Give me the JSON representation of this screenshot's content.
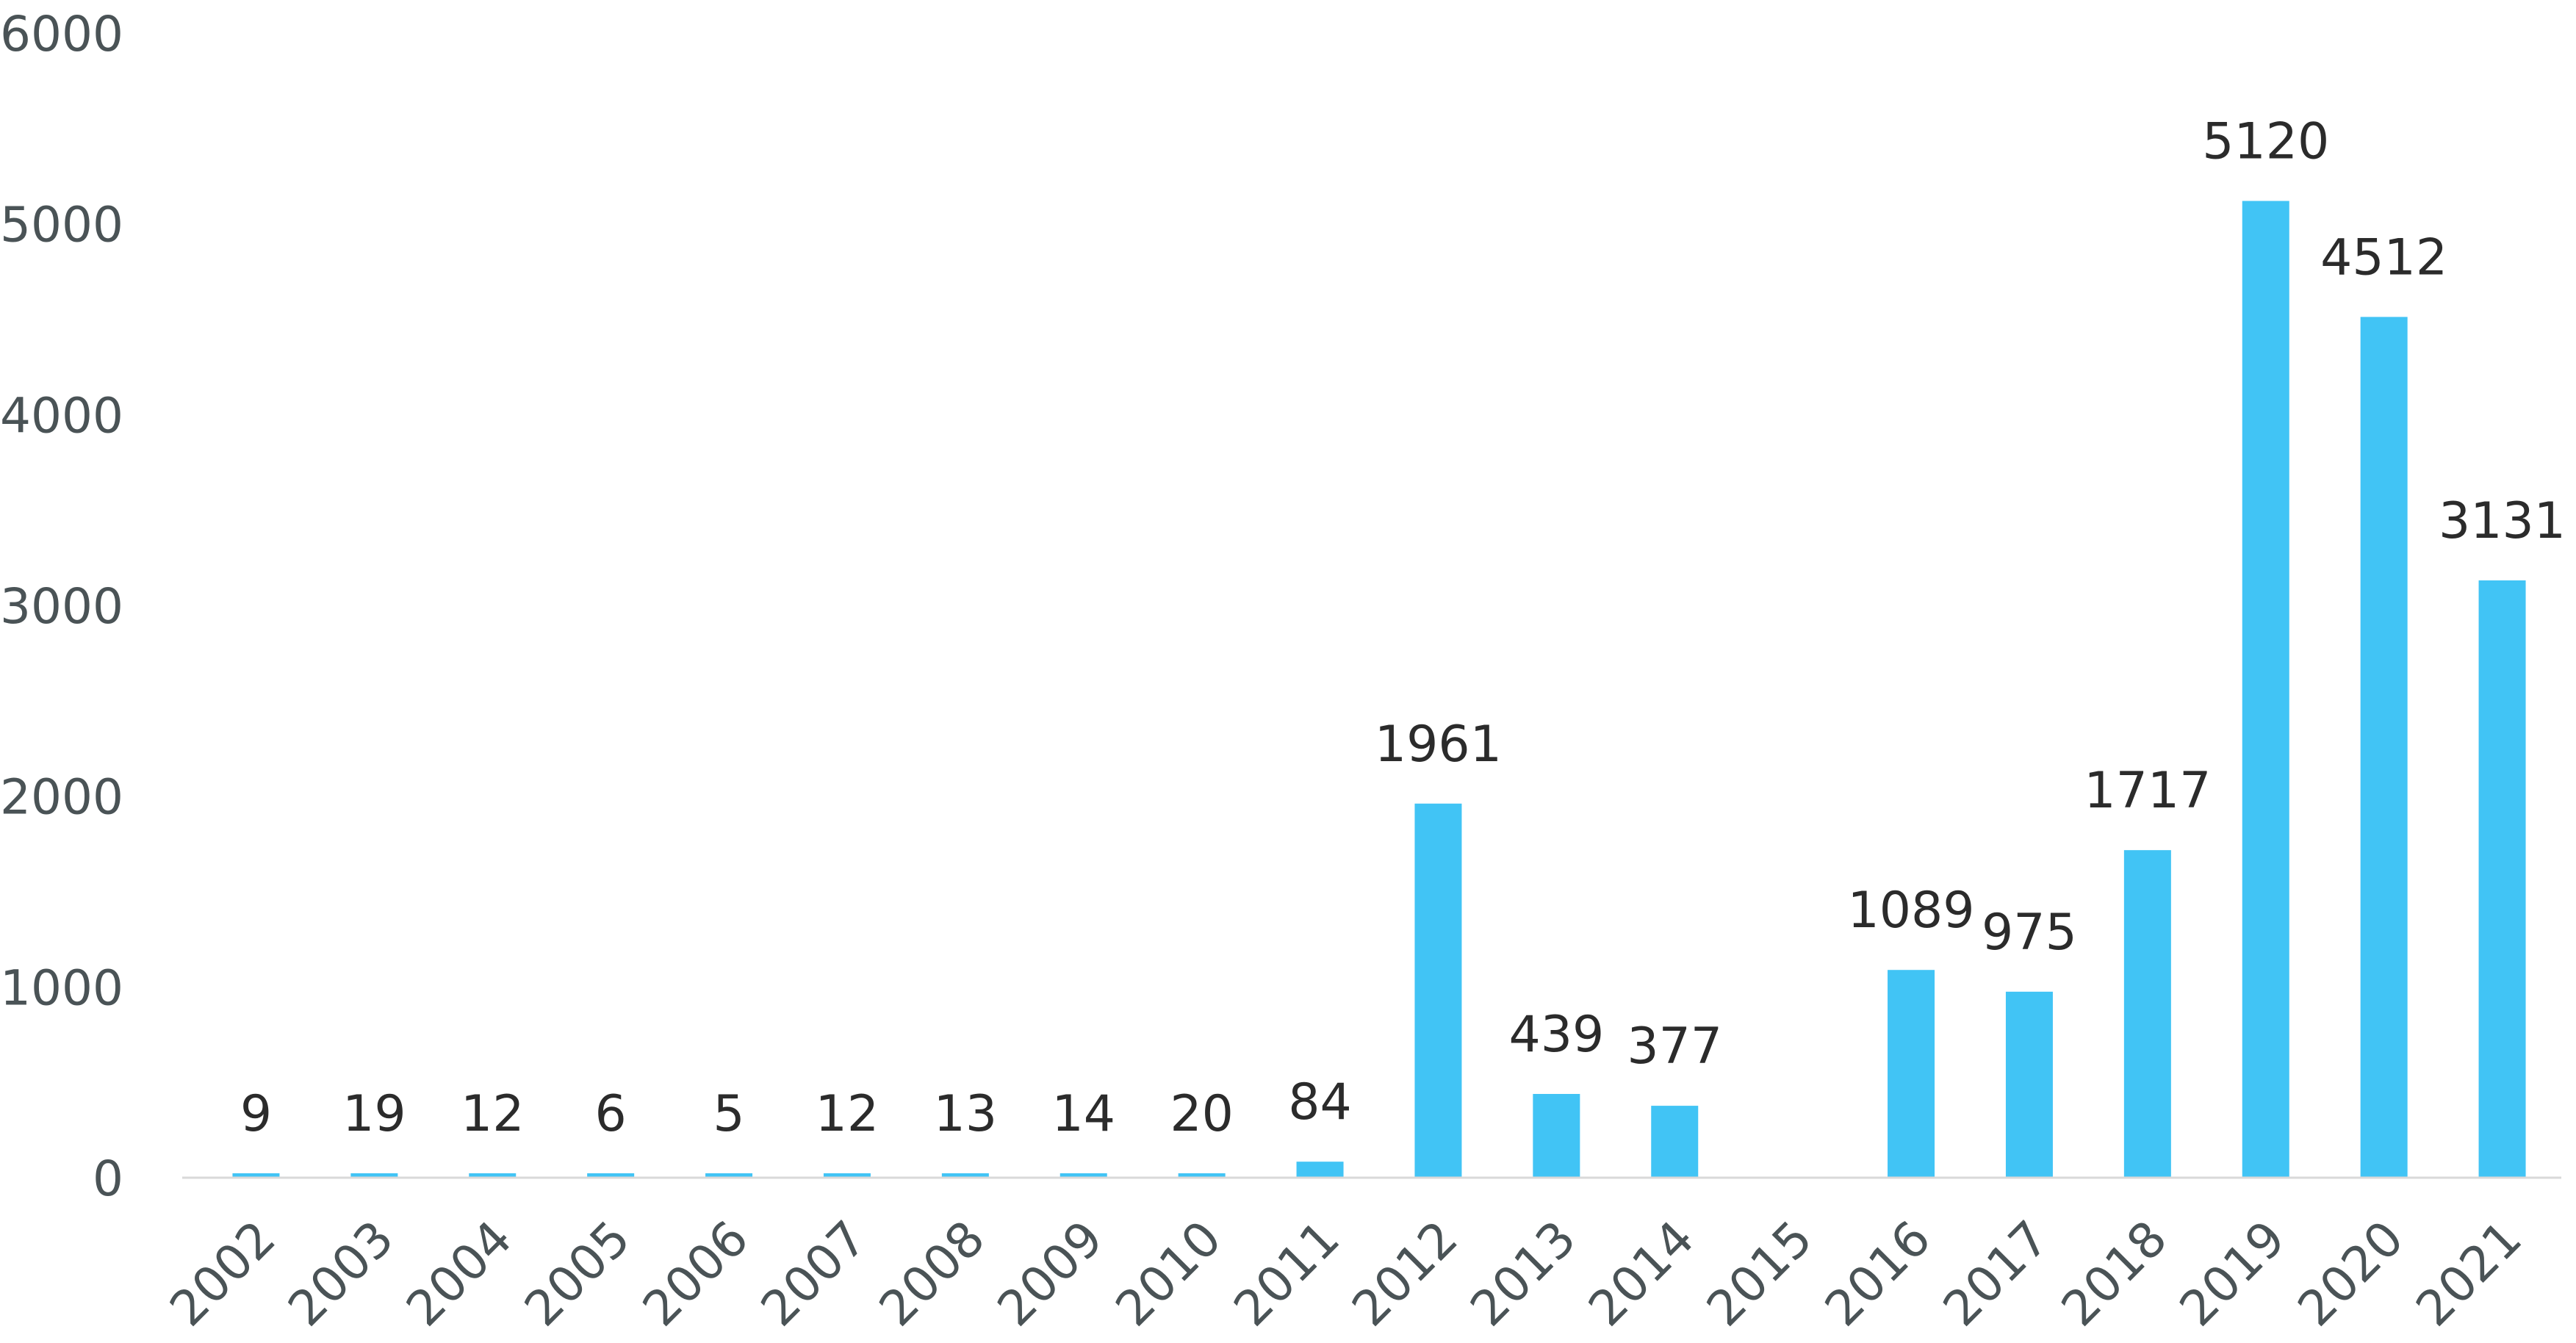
{
  "chart_data": {
    "type": "bar",
    "categories": [
      "2002",
      "2003",
      "2004",
      "2005",
      "2006",
      "2007",
      "2008",
      "2009",
      "2010",
      "2011",
      "2012",
      "2013",
      "2014",
      "2015",
      "2016",
      "2017",
      "2018",
      "2019",
      "2020",
      "2021"
    ],
    "values": [
      9,
      19,
      12,
      6,
      5,
      12,
      13,
      14,
      20,
      84,
      1961,
      439,
      377,
      null,
      1089,
      975,
      1717,
      5120,
      4512,
      3131
    ],
    "data_labels": [
      "9",
      "19",
      "12",
      "6",
      "5",
      "12",
      "13",
      "14",
      "20",
      "84",
      "1961",
      "439",
      "377",
      "",
      "1089",
      "975",
      "1717",
      "5120",
      "4512",
      "3131"
    ],
    "yticks": [
      0,
      1000,
      2000,
      3000,
      4000,
      5000,
      6000
    ],
    "ylim": [
      0,
      6000
    ],
    "title": "",
    "xlabel": "",
    "ylabel": "",
    "grid": false,
    "legend": "none",
    "colors": {
      "bar": "#41c4f5",
      "axis_line": "#d9d9d9",
      "tick_text": "#4a5356",
      "label_text": "#2b2b2b"
    }
  }
}
